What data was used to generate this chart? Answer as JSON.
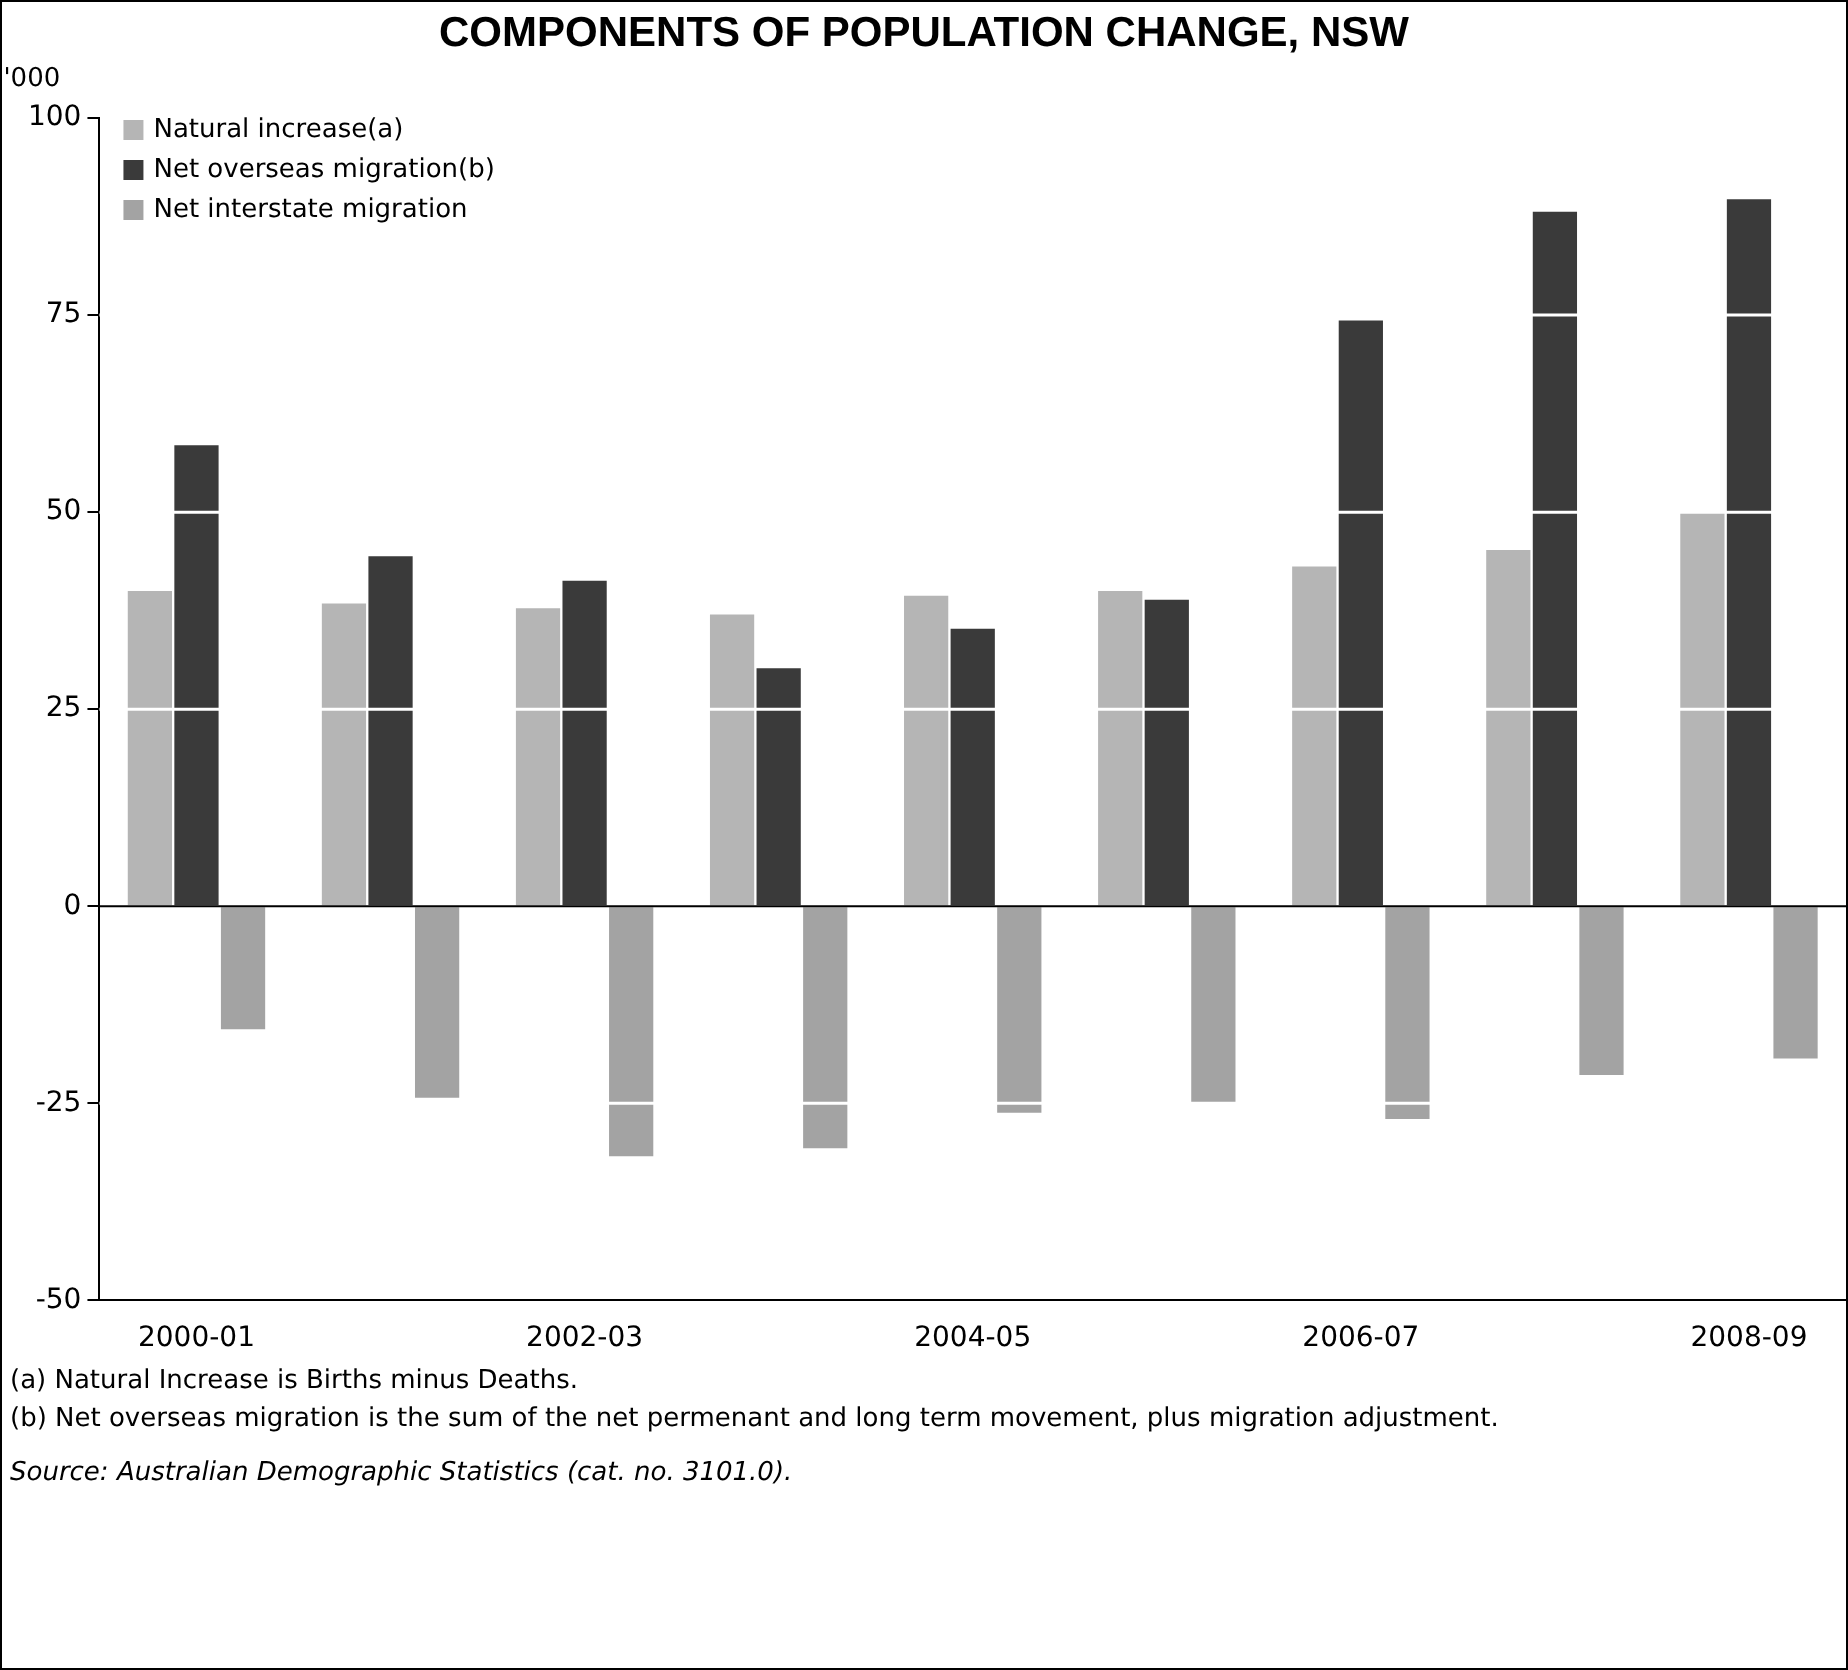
{
  "chart_data": {
    "type": "bar",
    "title": "COMPONENTS OF POPULATION CHANGE, NSW",
    "ylabel": "'000",
    "categories": [
      "2000-01",
      null,
      "2002-03",
      null,
      "2004-05",
      null,
      "2006-07",
      null,
      "2008-09"
    ],
    "series": [
      {
        "name": "Natural increase(a)",
        "color": "#b5b5b5",
        "values": [
          40.0,
          38.4,
          37.8,
          37.0,
          39.4,
          40.0,
          43.1,
          45.2,
          50.0
        ]
      },
      {
        "name": "Net overseas migration(b)",
        "color": "#3a3a3a",
        "values": [
          58.5,
          44.4,
          41.3,
          30.2,
          35.2,
          38.9,
          74.3,
          88.1,
          89.7
        ]
      },
      {
        "name": "Net interstate migration",
        "color": "#a3a3a3",
        "values": [
          -15.6,
          -24.3,
          -31.7,
          -30.7,
          -26.2,
          -24.9,
          -27.0,
          -21.4,
          -19.3
        ]
      }
    ],
    "ylim": [
      -50,
      100
    ],
    "yticks": [
      -50,
      -25,
      0,
      25,
      50,
      75,
      100
    ],
    "grid": "y",
    "legend": "top left",
    "annotations": [
      "(a) Natural Increase is Births minus Deaths.",
      "(b) Net overseas migration is the sum of the net permenant and long term movement, plus migration adjustment.",
      "Source: Australian Demographic Statistics (cat. no. 3101.0)."
    ]
  }
}
